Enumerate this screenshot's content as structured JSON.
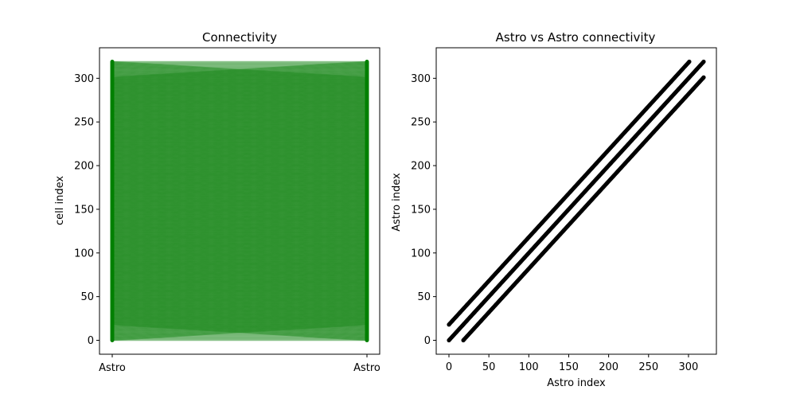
{
  "chart_data": [
    {
      "type": "line",
      "title": "Connectivity",
      "xlabel": "",
      "ylabel": "cell index",
      "categories": [
        "Astro",
        "Astro"
      ],
      "ylim": [
        -15.95,
        334.95
      ],
      "yticks": [
        0,
        50,
        100,
        150,
        200,
        250,
        300
      ],
      "n_cells": 320,
      "line_color": "#228b22",
      "line_opacity": 0.5,
      "node_color": "#008000",
      "grid": false,
      "legend": "none"
    },
    {
      "type": "scatter",
      "title": "Astro vs Astro connectivity",
      "xlabel": "Astro index",
      "ylabel": "Astro index",
      "xlim": [
        -15.95,
        334.95
      ],
      "ylim": [
        -15.95,
        334.95
      ],
      "xticks": [
        0,
        50,
        100,
        150,
        200,
        250,
        300
      ],
      "yticks": [
        0,
        50,
        100,
        150,
        200,
        250,
        300
      ],
      "n_cells": 320,
      "offsets": [
        -18,
        0,
        18
      ],
      "marker_color": "#000000",
      "grid": false,
      "legend": "none"
    }
  ]
}
